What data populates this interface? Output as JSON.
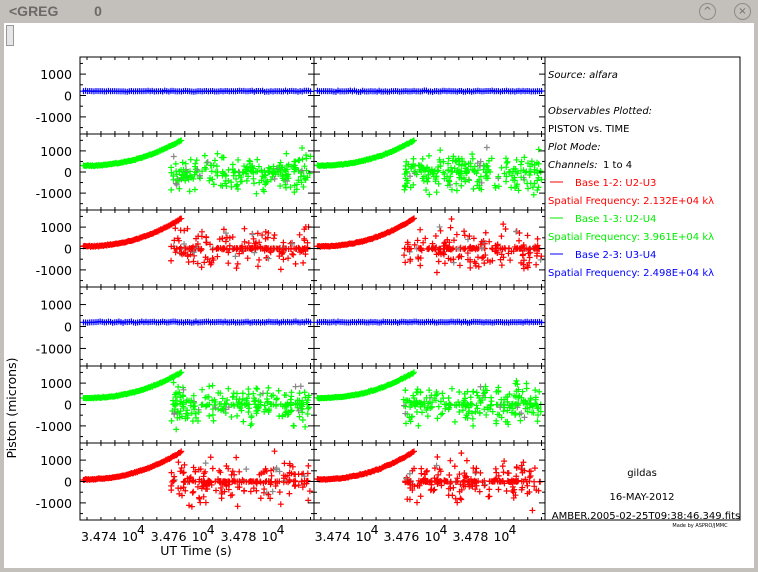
{
  "window": {
    "title": "<GREG   0",
    "minimize_icon": "chevron-up-icon",
    "close_icon": "close-icon"
  },
  "info": {
    "source": "Source: alfara",
    "observables_heading": "Observables Plotted:",
    "observables": "PISTON vs. TIME",
    "plot_mode": "Plot Mode:",
    "channels_label": "Channels:",
    "channels_value": "1 to 4",
    "bases": [
      {
        "label": "Base 1-2: U2-U3",
        "freq": "Spatial Frequency: 2.132E+04 kλ",
        "color": "#ff0000"
      },
      {
        "label": "Base 1-3: U2-U4",
        "freq": "Spatial Frequency: 3.961E+04 kλ",
        "color": "#00ee00"
      },
      {
        "label": "Base 2-3: U3-U4",
        "freq": "Spatial Frequency: 2.498E+04 kλ",
        "color": "#0000ff"
      }
    ],
    "software": "gildas",
    "date": "16-MAY-2012",
    "filename": "AMBER.2005-02-25T09:38:46.349.fits",
    "credit": "Made by ASPRO/JMMC"
  },
  "chart_data": {
    "type": "scatter",
    "xlabel": "UT Time (s)",
    "ylabel": "Piston (microns)",
    "xlim": [
      34732,
      34799
    ],
    "ylim": [
      -1800,
      1800
    ],
    "xticks": [
      {
        "value": 34740,
        "label": "3.474",
        "exp": "10",
        "pow": "4"
      },
      {
        "value": 34760,
        "label": "3.476",
        "exp": "10",
        "pow": "4"
      },
      {
        "value": 34780,
        "label": "3.478",
        "exp": "10",
        "pow": "4"
      }
    ],
    "yticks": [
      {
        "value": 1000,
        "label": "1000"
      },
      {
        "value": 0,
        "label": "0"
      },
      {
        "value": -1000,
        "label": "-1000"
      }
    ],
    "grid": false,
    "layout": "6 rows x 2 columns",
    "rows": [
      "Base 2-3",
      "Base 1-3",
      "Base 1-2",
      "Base 2-3",
      "Base 1-3",
      "Base 1-2"
    ],
    "series": {
      "Base 1-2": {
        "color": "#ff0000",
        "trend": {
          "t_start": 34733,
          "t_end": 34761,
          "y_start": 100,
          "y_end": 1400
        },
        "scatter": {
          "t_start": 34758,
          "t_end": 34798,
          "core": 0,
          "spread": 1500,
          "core_fraction": 0.4
        }
      },
      "Base 1-3": {
        "color": "#00ff00",
        "trend": {
          "t_start": 34733,
          "t_end": 34761,
          "y_start": 300,
          "y_end": 1500
        },
        "scatter": {
          "t_start": 34758,
          "t_end": 34798,
          "core": 0,
          "spread": 1300,
          "core_fraction": 0.1
        }
      },
      "Base 2-3": {
        "color": "#0000ff",
        "trend": {
          "t_start": 34733,
          "t_end": 34798,
          "y_start": 200,
          "y_end": 200
        },
        "scatter": null
      }
    }
  }
}
